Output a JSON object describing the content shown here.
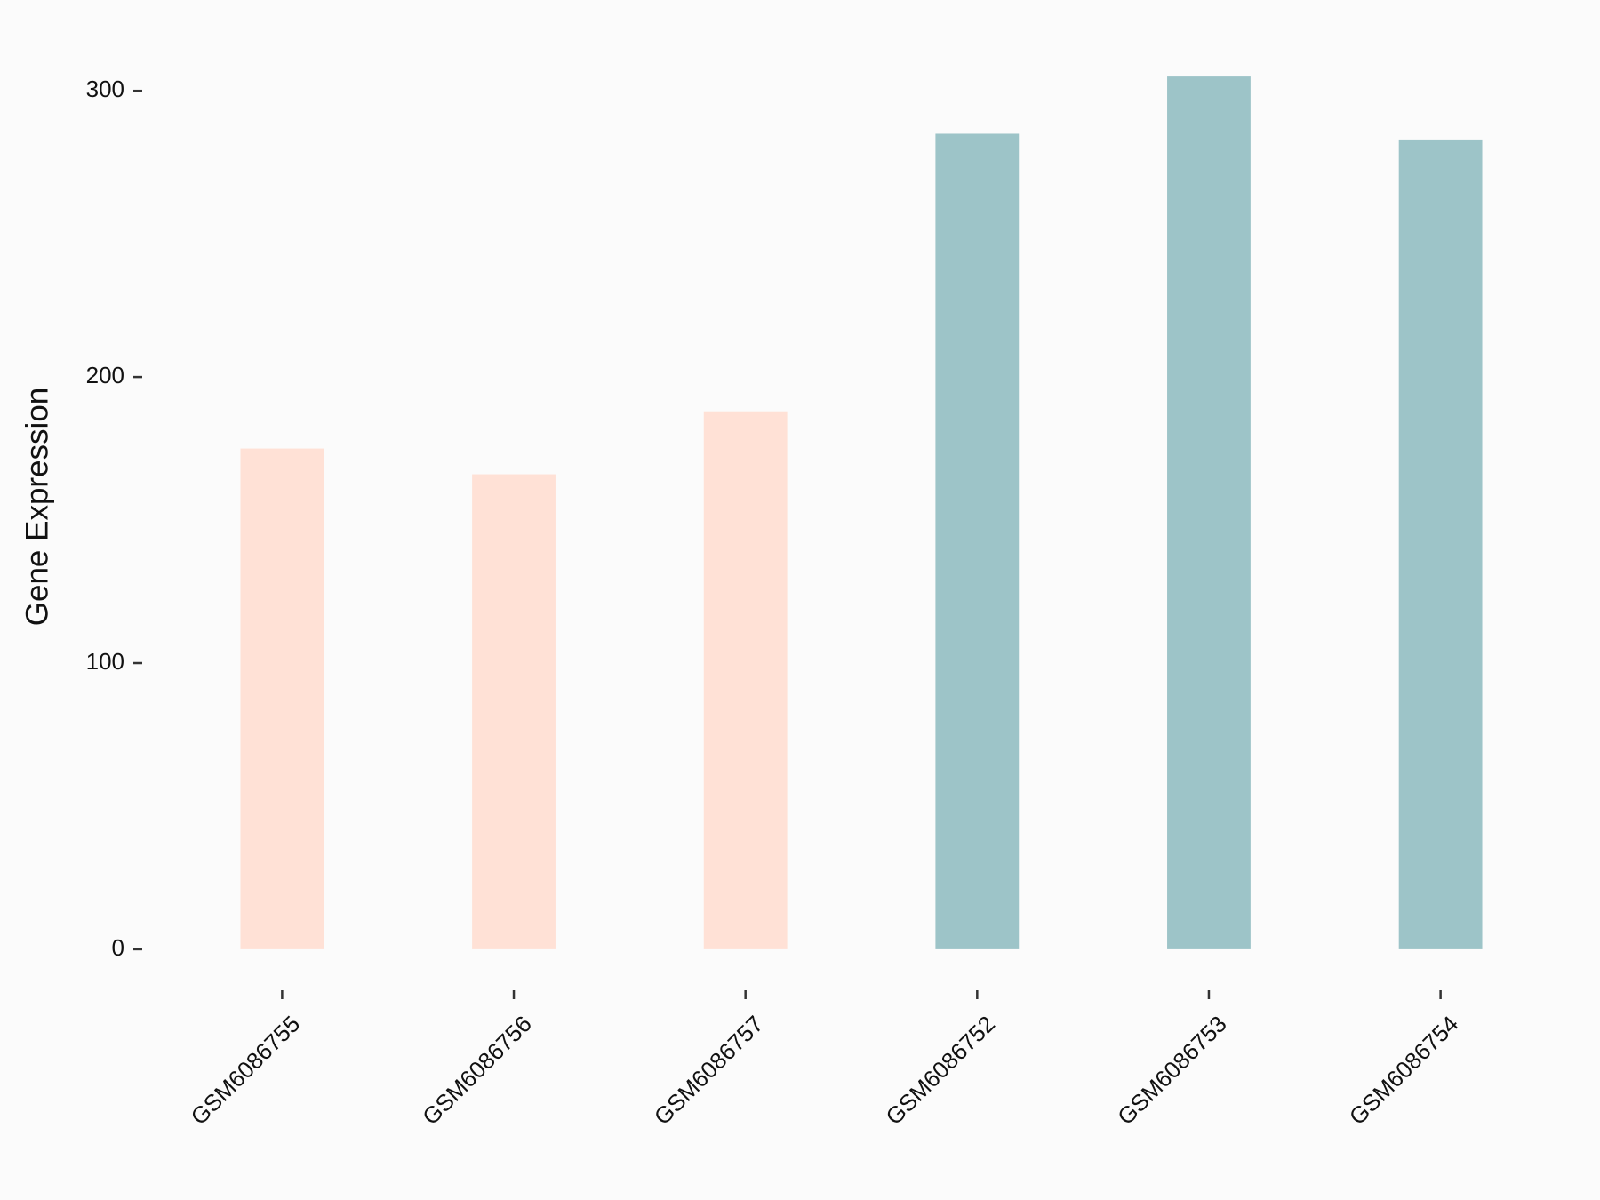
{
  "chart_data": {
    "type": "bar",
    "y_label": "Gene Expression",
    "categories": [
      "GSM6086755",
      "GSM6086756",
      "GSM6086757",
      "GSM6086752",
      "GSM6086753",
      "GSM6086754"
    ],
    "values": [
      175,
      166,
      188,
      285,
      305,
      283
    ],
    "colors": [
      "#ffe1d6",
      "#ffe1d6",
      "#ffe1d6",
      "#9dc4c8",
      "#9dc4c8",
      "#9dc4c8"
    ],
    "ylim": [
      -15.25,
      320.25
    ],
    "yticks": [
      0,
      100,
      200,
      300
    ],
    "grid": false
  }
}
